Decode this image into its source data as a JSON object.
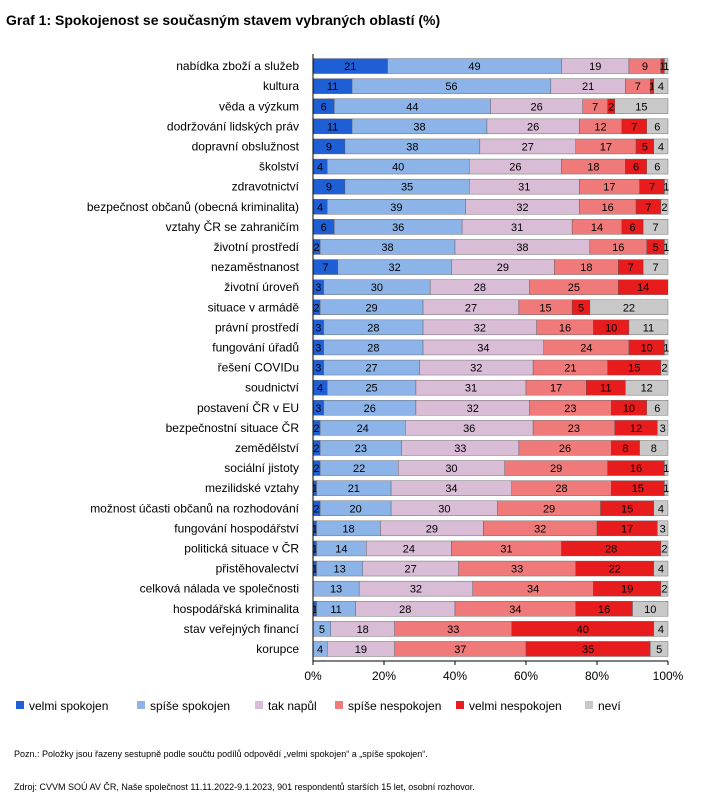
{
  "title": "Graf 1: Spokojenost se současným stavem vybraných oblastí (%)",
  "note": "Pozn.: Položky jsou řazeny sestupně podle součtu podílů odpovědí „velmi spokojen“ a „spíše spokojen“.",
  "source": "Zdroj: CVVM SOÚ AV ČR, Naše společnost 11.11.2022-9.1.2023, 901 respondentů starších 15 let, osobní rozhovor.",
  "chart_data": {
    "type": "bar",
    "stacked": "percent",
    "orientation": "horizontal",
    "xlim": [
      0,
      100
    ],
    "x_ticks": [
      "0%",
      "20%",
      "40%",
      "60%",
      "80%",
      "100%"
    ],
    "grid": false,
    "legend_position": "bottom",
    "categories": [
      "nabídka zboží a služeb",
      "kultura",
      "věda a výzkum",
      "dodržování lidských práv",
      "dopravní obslužnost",
      "školství",
      "zdravotnictví",
      "bezpečnost občanů (obecná kriminalita)",
      "vztahy ČR se zahraničím",
      "životní prostředí",
      "nezaměstnanost",
      "životní úroveň",
      "situace v armádě",
      "právní prostředí",
      "fungování úřadů",
      "řešení COVIDu",
      "soudnictví",
      "postavení ČR v EU",
      "bezpečnostní situace ČR",
      "zemědělství",
      "sociální jistoty",
      "mezilidské vztahy",
      "možnost účasti občanů na rozhodování",
      "fungování hospodářství",
      "politická situace v ČR",
      "přistěhovalectví",
      "celková nálada ve společnosti",
      "hospodářská kriminalita",
      "stav veřejných financí",
      "korupce"
    ],
    "series": [
      {
        "name": "velmi spokojen",
        "color": "#1f5fd6",
        "values": [
          21,
          11,
          6,
          11,
          9,
          4,
          9,
          4,
          6,
          2,
          7,
          3,
          2,
          3,
          3,
          3,
          4,
          3,
          2,
          2,
          2,
          1,
          2,
          1,
          1,
          1,
          0,
          1,
          0,
          0
        ]
      },
      {
        "name": "spíše spokojen",
        "color": "#8db4e8",
        "values": [
          49,
          56,
          44,
          38,
          38,
          40,
          35,
          39,
          36,
          38,
          32,
          30,
          29,
          28,
          28,
          27,
          25,
          26,
          24,
          23,
          22,
          21,
          20,
          18,
          14,
          13,
          13,
          11,
          5,
          4
        ]
      },
      {
        "name": "tak napůl",
        "color": "#d9bcd6",
        "values": [
          19,
          21,
          26,
          26,
          27,
          26,
          31,
          32,
          31,
          38,
          29,
          28,
          27,
          32,
          34,
          32,
          31,
          32,
          36,
          33,
          30,
          34,
          30,
          29,
          24,
          27,
          32,
          28,
          18,
          19
        ]
      },
      {
        "name": "spíše nespokojen",
        "color": "#f07a7a",
        "values": [
          9,
          7,
          7,
          12,
          17,
          18,
          17,
          16,
          14,
          16,
          18,
          25,
          15,
          16,
          24,
          21,
          17,
          23,
          23,
          26,
          29,
          28,
          29,
          32,
          31,
          33,
          34,
          34,
          33,
          37
        ]
      },
      {
        "name": "velmi nespokojen",
        "color": "#e81c1c",
        "values": [
          1,
          1,
          2,
          7,
          5,
          6,
          7,
          7,
          6,
          5,
          7,
          14,
          5,
          10,
          10,
          15,
          11,
          10,
          12,
          8,
          16,
          15,
          15,
          17,
          28,
          22,
          19,
          16,
          40,
          35
        ]
      },
      {
        "name": "neví",
        "color": "#c8c8c8",
        "values": [
          1,
          4,
          15,
          6,
          4,
          6,
          1,
          2,
          7,
          1,
          7,
          0,
          22,
          11,
          1,
          2,
          12,
          6,
          3,
          8,
          1,
          1,
          4,
          3,
          2,
          4,
          2,
          10,
          4,
          5
        ]
      }
    ]
  }
}
